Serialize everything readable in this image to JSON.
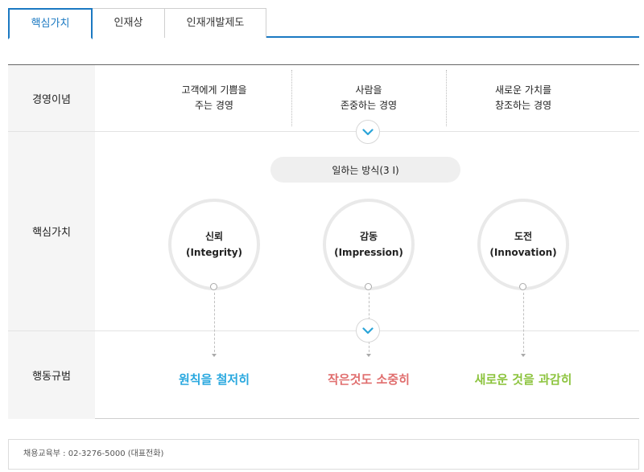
{
  "tabs": [
    {
      "label": "핵심가치",
      "active": true
    },
    {
      "label": "인재상",
      "active": false
    },
    {
      "label": "인재개발제도",
      "active": false
    }
  ],
  "rows": {
    "management_ideology": "경영이념",
    "core_values": "핵심가치",
    "code_of_conduct": "행동규범"
  },
  "ideals": [
    {
      "line1": "고객에게 기쁨을",
      "line2": "주는 경영"
    },
    {
      "line1": "사람을",
      "line2": "존중하는 경영"
    },
    {
      "line1": "새로운 가치를",
      "line2": "창조하는 경영"
    }
  ],
  "work_method": "일하는 방식(3 I)",
  "values": [
    {
      "name": "신뢰",
      "english": "(Integrity)",
      "color": "#29a8df",
      "progress": 0.22
    },
    {
      "name": "감동",
      "english": "(Impression)",
      "color": "#e06e6e",
      "progress": 0.22
    },
    {
      "name": "도전",
      "english": "(Innovation)",
      "color": "#8dc43f",
      "progress": 0.22
    }
  ],
  "rules": [
    {
      "text": "원칙을 철저히",
      "color": "#29a8df"
    },
    {
      "text": "작은것도 소중히",
      "color": "#e06e6e"
    },
    {
      "text": "새로운 것을 과감히",
      "color": "#8dc43f"
    }
  ],
  "icons": {
    "chevron": "chevron-down-icon"
  },
  "footer": {
    "text": "채용교육부 : 02-3276-5000 (대표전화)"
  }
}
